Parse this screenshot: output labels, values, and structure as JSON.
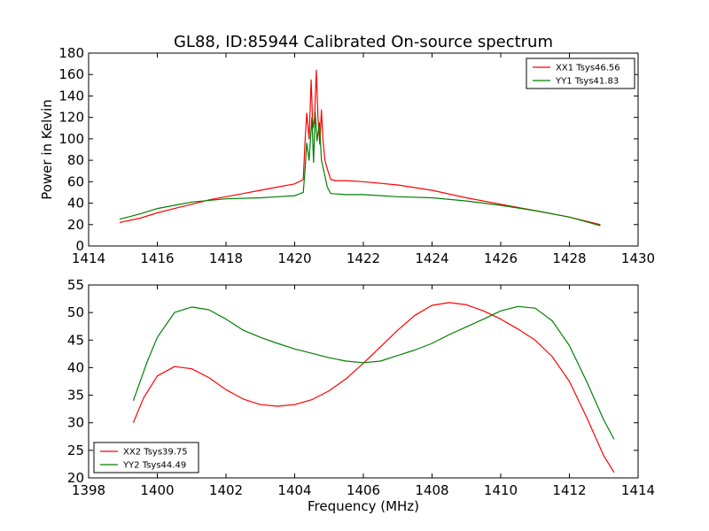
{
  "chart_data": [
    {
      "type": "line",
      "title": "GL88, ID:85944 Calibrated On-source spectrum",
      "xlabel": "",
      "ylabel": "Power in Kelvin",
      "xlim": [
        1414,
        1430
      ],
      "ylim": [
        0,
        180
      ],
      "xticks": [
        "1414",
        "1416",
        "1418",
        "1420",
        "1422",
        "1424",
        "1426",
        "1428",
        "1430"
      ],
      "yticks": [
        "0",
        "20",
        "40",
        "60",
        "80",
        "100",
        "120",
        "140",
        "160",
        "180"
      ],
      "legend_position": "top-right",
      "series": [
        {
          "name": "XX1 Tsys46.56",
          "color": "#ff0000",
          "points": [
            [
              1414.9,
              22
            ],
            [
              1415.5,
              26
            ],
            [
              1416,
              31
            ],
            [
              1416.5,
              35
            ],
            [
              1417,
              39
            ],
            [
              1417.5,
              43
            ],
            [
              1418,
              46
            ],
            [
              1418.5,
              49
            ],
            [
              1419,
              52
            ],
            [
              1419.5,
              55
            ],
            [
              1420,
              58
            ],
            [
              1420.25,
              62
            ],
            [
              1420.3,
              96
            ],
            [
              1420.35,
              124
            ],
            [
              1420.42,
              100
            ],
            [
              1420.48,
              155
            ],
            [
              1420.53,
              110
            ],
            [
              1420.58,
              120
            ],
            [
              1420.63,
              164
            ],
            [
              1420.68,
              118
            ],
            [
              1420.73,
              95
            ],
            [
              1420.78,
              127
            ],
            [
              1420.82,
              100
            ],
            [
              1420.88,
              80
            ],
            [
              1420.95,
              72
            ],
            [
              1421.05,
              62
            ],
            [
              1421.2,
              61
            ],
            [
              1421.5,
              61
            ],
            [
              1422,
              60
            ],
            [
              1423,
              57
            ],
            [
              1424,
              52
            ],
            [
              1425,
              45
            ],
            [
              1426,
              39
            ],
            [
              1427,
              33
            ],
            [
              1428,
              27
            ],
            [
              1428.9,
              20
            ]
          ]
        },
        {
          "name": "YY1 Tsys41.83",
          "color": "#008000",
          "points": [
            [
              1414.9,
              25
            ],
            [
              1415.5,
              30
            ],
            [
              1416,
              35
            ],
            [
              1416.5,
              38
            ],
            [
              1417,
              41
            ],
            [
              1418,
              44
            ],
            [
              1419,
              45
            ],
            [
              1419.5,
              46
            ],
            [
              1420,
              47
            ],
            [
              1420.25,
              50
            ],
            [
              1420.3,
              70
            ],
            [
              1420.35,
              96
            ],
            [
              1420.42,
              80
            ],
            [
              1420.5,
              120
            ],
            [
              1420.55,
              78
            ],
            [
              1420.6,
              125
            ],
            [
              1420.65,
              98
            ],
            [
              1420.72,
              115
            ],
            [
              1420.78,
              80
            ],
            [
              1420.85,
              70
            ],
            [
              1420.95,
              55
            ],
            [
              1421.05,
              49
            ],
            [
              1421.5,
              48
            ],
            [
              1422,
              48
            ],
            [
              1423,
              46
            ],
            [
              1424,
              45
            ],
            [
              1425,
              42
            ],
            [
              1426,
              38
            ],
            [
              1427,
              33
            ],
            [
              1428,
              27
            ],
            [
              1428.9,
              19
            ]
          ]
        }
      ]
    },
    {
      "type": "line",
      "title": "",
      "xlabel": "Frequency (MHz)",
      "ylabel": "",
      "xlim": [
        1398,
        1414
      ],
      "ylim": [
        20,
        55
      ],
      "xticks": [
        "1398",
        "1400",
        "1402",
        "1404",
        "1406",
        "1408",
        "1410",
        "1412",
        "1414"
      ],
      "yticks": [
        "20",
        "25",
        "30",
        "35",
        "40",
        "45",
        "50",
        "55"
      ],
      "legend_position": "bottom-left",
      "series": [
        {
          "name": "XX2 Tsys39.75",
          "color": "#ff0000",
          "points": [
            [
              1399.3,
              30
            ],
            [
              1399.6,
              34.5
            ],
            [
              1400,
              38.5
            ],
            [
              1400.5,
              40.2
            ],
            [
              1401,
              39.8
            ],
            [
              1401.5,
              38.2
            ],
            [
              1402,
              36
            ],
            [
              1402.5,
              34.3
            ],
            [
              1403,
              33.3
            ],
            [
              1403.5,
              33
            ],
            [
              1404,
              33.3
            ],
            [
              1404.5,
              34.2
            ],
            [
              1405,
              35.8
            ],
            [
              1405.5,
              38
            ],
            [
              1406,
              40.8
            ],
            [
              1406.5,
              43.8
            ],
            [
              1407,
              46.8
            ],
            [
              1407.5,
              49.5
            ],
            [
              1408,
              51.3
            ],
            [
              1408.5,
              51.8
            ],
            [
              1409,
              51.4
            ],
            [
              1409.5,
              50.3
            ],
            [
              1410,
              48.8
            ],
            [
              1410.5,
              47
            ],
            [
              1411,
              45
            ],
            [
              1411.5,
              42
            ],
            [
              1412,
              37.5
            ],
            [
              1412.5,
              31
            ],
            [
              1413,
              24
            ],
            [
              1413.3,
              21
            ]
          ]
        },
        {
          "name": "YY2 Tsys44.49",
          "color": "#008000",
          "points": [
            [
              1399.3,
              34
            ],
            [
              1399.7,
              41
            ],
            [
              1400,
              45.5
            ],
            [
              1400.5,
              50
            ],
            [
              1401,
              51
            ],
            [
              1401.5,
              50.5
            ],
            [
              1402,
              48.8
            ],
            [
              1402.5,
              46.8
            ],
            [
              1403,
              45.5
            ],
            [
              1403.5,
              44.4
            ],
            [
              1404,
              43.4
            ],
            [
              1404.5,
              42.6
            ],
            [
              1405,
              41.8
            ],
            [
              1405.5,
              41.2
            ],
            [
              1406,
              40.9
            ],
            [
              1406.5,
              41.2
            ],
            [
              1407,
              42.2
            ],
            [
              1407.5,
              43.2
            ],
            [
              1408,
              44.4
            ],
            [
              1408.5,
              46
            ],
            [
              1409,
              47.4
            ],
            [
              1409.5,
              48.8
            ],
            [
              1410,
              50.3
            ],
            [
              1410.5,
              51.1
            ],
            [
              1411,
              50.8
            ],
            [
              1411.5,
              48.5
            ],
            [
              1412,
              44
            ],
            [
              1412.5,
              37.5
            ],
            [
              1413,
              30.5
            ],
            [
              1413.3,
              27
            ]
          ]
        }
      ]
    }
  ]
}
